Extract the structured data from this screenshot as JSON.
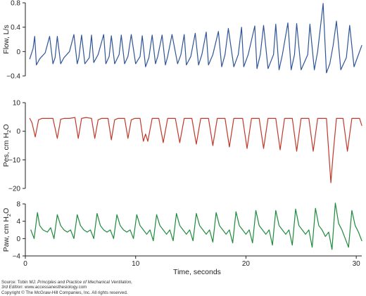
{
  "chart_data": [
    {
      "type": "line",
      "ylabel": "Flow, L/s",
      "ylim": [
        -0.4,
        0.8
      ],
      "yticks": [
        0.8,
        0.4,
        0,
        -0.4
      ],
      "ytick_labels": [
        "0.8",
        "0.4",
        "0",
        "−0.4"
      ],
      "xlim": [
        0,
        30.5
      ],
      "grid": false,
      "series": [
        {
          "color": "#2f5597",
          "x": [
            0.4,
            0.7,
            0.85,
            1.0,
            1.3,
            1.8,
            2.2,
            2.5,
            2.7,
            2.9,
            3.2,
            3.5,
            4.0,
            4.4,
            4.7,
            4.85,
            5.1,
            5.4,
            5.8,
            6.0,
            6.2,
            6.6,
            7.1,
            7.3,
            7.6,
            7.8,
            8.1,
            8.5,
            8.7,
            9.0,
            9.3,
            9.6,
            10.0,
            10.4,
            10.6,
            10.9,
            11.2,
            11.5,
            11.8,
            12.0,
            12.4,
            12.7,
            12.9,
            13.3,
            13.8,
            14.1,
            14.4,
            14.6,
            15.0,
            15.4,
            15.7,
            16.0,
            16.4,
            16.6,
            17.0,
            17.5,
            17.8,
            18.1,
            18.4,
            18.9,
            19.3,
            19.6,
            19.8,
            20.2,
            20.8,
            21.0,
            21.3,
            21.6,
            22.0,
            22.5,
            22.7,
            23.0,
            23.3,
            23.8,
            24.1,
            24.4,
            24.6,
            25.0,
            25.6,
            25.8,
            26.2,
            26.5,
            27.0,
            27.3,
            27.6,
            27.9,
            28.2,
            28.6,
            29.1,
            29.4,
            29.8,
            30.1,
            30.5
          ],
          "y": [
            -0.12,
            0.05,
            0.25,
            -0.22,
            -0.12,
            -0.02,
            0.25,
            -0.2,
            -0.1,
            0.25,
            -0.2,
            -0.1,
            0.0,
            0.28,
            -0.2,
            -0.1,
            0.27,
            -0.2,
            -0.1,
            0.27,
            -0.18,
            -0.05,
            0.28,
            -0.2,
            -0.08,
            0.26,
            -0.2,
            -0.05,
            0.27,
            -0.2,
            -0.08,
            0.28,
            -0.2,
            -0.08,
            0.26,
            -0.25,
            -0.1,
            0.27,
            -0.2,
            -0.08,
            0.27,
            -0.22,
            -0.08,
            0.28,
            -0.2,
            -0.05,
            0.28,
            -0.22,
            -0.08,
            0.3,
            -0.22,
            -0.05,
            0.32,
            -0.22,
            -0.05,
            0.33,
            -0.25,
            -0.05,
            0.38,
            -0.25,
            -0.05,
            0.4,
            -0.25,
            -0.05,
            0.42,
            -0.28,
            -0.05,
            0.43,
            -0.28,
            -0.05,
            0.45,
            -0.3,
            -0.05,
            0.47,
            -0.3,
            -0.05,
            0.46,
            -0.3,
            -0.05,
            0.45,
            -0.3,
            0.0,
            0.79,
            -0.35,
            -0.2,
            0.1,
            0.5,
            -0.3,
            -0.1,
            0.43,
            -0.25,
            -0.1,
            0.1
          ]
        }
      ]
    },
    {
      "type": "line",
      "ylabel": "Pes, cm H",
      "ylabel_sub": "2",
      "ylabel_end": "O",
      "ylim": [
        -20,
        10
      ],
      "yticks": [
        10,
        0,
        -10,
        -20
      ],
      "ytick_labels": [
        "10",
        "0",
        "−10",
        "−20"
      ],
      "xlim": [
        0,
        30.5
      ],
      "grid": false,
      "series": [
        {
          "color": "#c0392b",
          "x": [
            0.4,
            0.6,
            0.9,
            1.2,
            1.5,
            2.5,
            2.9,
            3.2,
            3.5,
            4.0,
            4.5,
            4.8,
            5.1,
            5.5,
            6.0,
            6.3,
            6.6,
            6.9,
            7.5,
            7.8,
            8.1,
            8.4,
            9.0,
            9.3,
            9.6,
            9.9,
            10.4,
            10.7,
            10.9,
            11.1,
            11.5,
            12.1,
            12.5,
            12.9,
            13.6,
            14.0,
            14.4,
            15.1,
            15.5,
            15.9,
            16.6,
            17.0,
            17.4,
            18.1,
            18.5,
            18.9,
            19.7,
            20.1,
            20.5,
            21.2,
            21.6,
            22.0,
            22.7,
            23.1,
            23.5,
            24.2,
            24.6,
            25.0,
            25.7,
            26.1,
            26.5,
            27.3,
            27.7,
            27.9,
            28.2,
            28.8,
            29.2,
            29.6,
            30.3,
            30.5
          ],
          "y": [
            4.5,
            3.0,
            -2.0,
            4.0,
            4.5,
            4.5,
            -2.5,
            4.2,
            4.5,
            4.5,
            4.8,
            -2.5,
            4.5,
            4.8,
            4.5,
            -2.5,
            4.0,
            4.5,
            4.5,
            -3.0,
            4.0,
            4.5,
            4.5,
            -2.5,
            4.0,
            4.5,
            4.5,
            -3.5,
            -1.0,
            -3.5,
            4.5,
            4.5,
            -4.0,
            4.5,
            4.5,
            -4.0,
            4.5,
            4.5,
            -4.5,
            4.5,
            4.5,
            -5.0,
            4.5,
            4.5,
            -5.5,
            4.5,
            4.5,
            -6.0,
            4.5,
            4.5,
            -6.0,
            4.5,
            4.5,
            -6.5,
            4.5,
            4.5,
            -7.0,
            4.5,
            4.5,
            -7.0,
            4.5,
            4.5,
            -18.0,
            -8.0,
            4.5,
            4.5,
            -7.0,
            4.5,
            4.5,
            2.0
          ]
        }
      ]
    },
    {
      "type": "line",
      "ylabel": "Paw, cm H",
      "ylabel_sub": "2",
      "ylabel_end": "O",
      "xlabel": "Time, seconds",
      "ylim": [
        -4,
        8
      ],
      "yticks": [
        8,
        4,
        0,
        -4
      ],
      "ytick_labels": [
        "8",
        "4",
        "0",
        "−4"
      ],
      "xticks": [
        0,
        10,
        20,
        30
      ],
      "xtick_labels": [
        "0",
        "10",
        "20",
        "30"
      ],
      "xlim": [
        0,
        30.5
      ],
      "grid": false,
      "series": [
        {
          "color": "#1e8a3c",
          "x": [
            0.5,
            0.8,
            1.1,
            1.3,
            1.6,
            2.0,
            2.3,
            2.6,
            2.9,
            3.2,
            3.5,
            3.8,
            4.1,
            4.4,
            4.7,
            5.0,
            5.3,
            5.6,
            5.9,
            6.2,
            6.5,
            6.8,
            7.1,
            7.4,
            7.7,
            8.0,
            8.3,
            8.6,
            8.9,
            9.2,
            9.5,
            9.8,
            10.1,
            10.4,
            10.7,
            11.0,
            11.3,
            11.6,
            11.9,
            12.2,
            12.5,
            12.8,
            13.1,
            13.4,
            13.7,
            14.0,
            14.3,
            14.6,
            14.9,
            15.2,
            15.5,
            15.8,
            16.1,
            16.4,
            16.7,
            17.0,
            17.3,
            17.6,
            17.9,
            18.2,
            18.5,
            18.8,
            19.1,
            19.4,
            19.7,
            20.0,
            20.3,
            20.6,
            20.9,
            21.2,
            21.5,
            21.8,
            22.1,
            22.4,
            22.7,
            23.0,
            23.3,
            23.6,
            23.9,
            24.2,
            24.5,
            24.8,
            25.1,
            25.4,
            25.7,
            26.0,
            26.3,
            26.6,
            26.9,
            27.2,
            27.5,
            27.8,
            28.1,
            28.4,
            28.7,
            29.0,
            29.3,
            29.6,
            29.9,
            30.2,
            30.5
          ],
          "y": [
            2.0,
            0.0,
            6.0,
            3.0,
            2.0,
            1.5,
            2.5,
            0.0,
            5.5,
            3.0,
            2.0,
            1.5,
            2.0,
            0.0,
            5.5,
            3.0,
            2.0,
            1.5,
            2.0,
            0.0,
            5.8,
            3.0,
            2.0,
            1.5,
            2.0,
            0.0,
            5.5,
            3.0,
            2.0,
            1.5,
            2.0,
            0.0,
            5.5,
            3.0,
            2.0,
            1.0,
            2.0,
            -0.5,
            5.5,
            3.0,
            2.0,
            1.0,
            2.0,
            -0.5,
            5.8,
            3.0,
            2.0,
            1.0,
            2.0,
            -0.5,
            5.8,
            3.0,
            2.0,
            1.0,
            2.0,
            -0.8,
            6.0,
            3.0,
            2.0,
            1.0,
            2.0,
            -1.0,
            6.2,
            3.0,
            2.0,
            1.0,
            2.0,
            -1.0,
            6.5,
            3.0,
            2.0,
            1.0,
            2.0,
            -1.5,
            6.5,
            3.0,
            2.0,
            1.0,
            2.0,
            -1.5,
            6.8,
            3.0,
            2.0,
            1.0,
            2.0,
            -2.0,
            7.0,
            3.0,
            2.0,
            0.5,
            1.5,
            -2.5,
            8.2,
            3.5,
            2.0,
            0.0,
            -2.0,
            6.5,
            3.0,
            1.5,
            -0.5
          ]
        }
      ]
    }
  ],
  "source": {
    "line1_prefix": "Source: Tobin MJ: ",
    "line1_title": "Principles and Practice of Mechanical Ventilation,",
    "line2_edition": "3rd Edition",
    "line2_suffix": ": www.accessanesthesiology.com",
    "line3": "Copyright © The McGraw-Hill Companies, Inc. All rights reserved."
  }
}
